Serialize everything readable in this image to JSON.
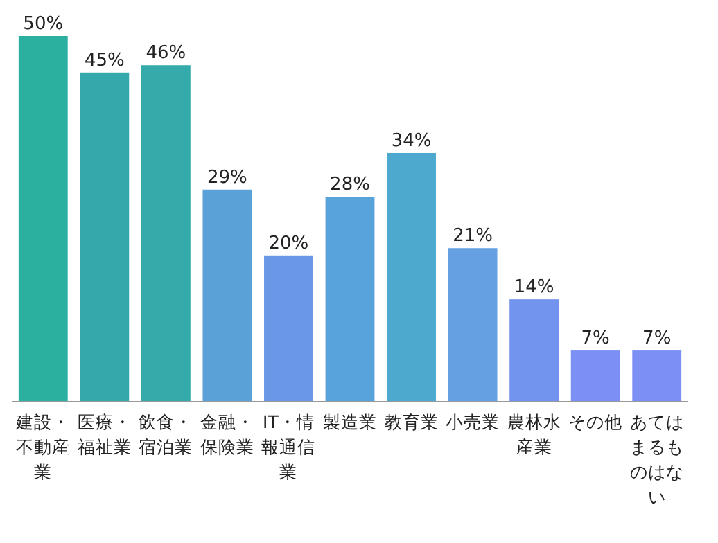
{
  "chart_data": {
    "type": "bar",
    "categories": [
      "建設・不動産業",
      "医療・福祉業",
      "飲食・宿泊業",
      "金融・保険業",
      "IT・情報通信業",
      "製造業",
      "教育業",
      "小売業",
      "農林水産業",
      "その他",
      "あてはまるものはない"
    ],
    "values": [
      50,
      45,
      46,
      29,
      20,
      28,
      34,
      21,
      14,
      7,
      7
    ],
    "value_labels": [
      "50%",
      "45%",
      "46%",
      "29%",
      "20%",
      "28%",
      "34%",
      "21%",
      "14%",
      "7%",
      "7%"
    ],
    "colors": [
      "#2bb0a0",
      "#34a9ab",
      "#34abaa",
      "#5aa1d8",
      "#6a97e8",
      "#58a3d9",
      "#4ea9cf",
      "#65a0e2",
      "#7294ee",
      "#7b8ff5",
      "#7b8ff5"
    ]
  }
}
